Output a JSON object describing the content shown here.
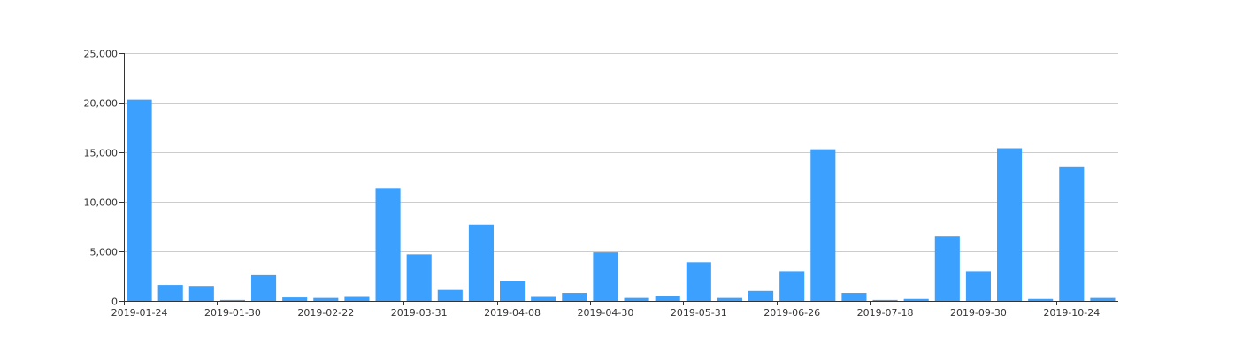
{
  "colors": {
    "bar": "#3ca0ff",
    "grid": "#cccccc",
    "axis": "#333333",
    "text": "#333333"
  },
  "chart_data": {
    "type": "bar",
    "title": "",
    "xlabel": "",
    "ylabel": "",
    "ylim": [
      0,
      25000
    ],
    "yticks": [
      0,
      5000,
      10000,
      15000,
      20000,
      25000
    ],
    "ytick_labels": [
      "0",
      "5,000",
      "10,000",
      "15,000",
      "20,000",
      "25,000"
    ],
    "grid": true,
    "legend": "none",
    "xtick_labels": [
      "2019-01-24",
      "2019-01-30",
      "2019-02-22",
      "2019-03-31",
      "2019-04-08",
      "2019-04-30",
      "2019-05-31",
      "2019-06-26",
      "2019-07-18",
      "2019-09-30",
      "2019-10-24"
    ],
    "values": [
      20300,
      1600,
      1500,
      100,
      2600,
      350,
      300,
      400,
      11400,
      4700,
      1100,
      7700,
      2000,
      400,
      800,
      4900,
      300,
      500,
      3900,
      300,
      1000,
      3000,
      15300,
      800,
      100,
      200,
      6500,
      3000,
      15400,
      200,
      13500,
      300
    ]
  }
}
